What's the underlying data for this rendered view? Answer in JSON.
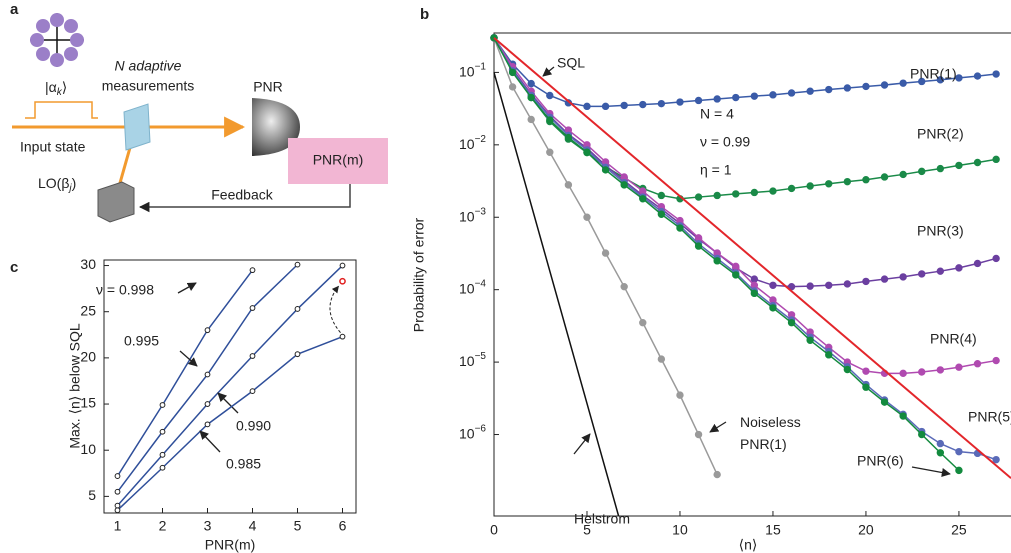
{
  "diagram": {
    "panel_label": "a",
    "state": "|αk⟩",
    "measurement_lines": [
      "N adaptive",
      "measurements"
    ],
    "detector": "PNR",
    "counter": "PNR(m)",
    "input": "Input state",
    "local_oscillator": "LO(βj)",
    "feedback": "Feedback"
  },
  "chart_data": [
    {
      "type": "line",
      "panel_label": "b",
      "ylabel": "Probability of error",
      "xlabel": "⟨n⟩",
      "ylog": true,
      "xlim": [
        0,
        27.8
      ],
      "xticks": [
        0,
        5,
        10,
        15,
        20,
        25
      ],
      "ylim": [
        7.5e-08,
        0.35
      ],
      "yticks": [
        {
          "value": 0.1,
          "label": "10−1"
        },
        {
          "value": 0.01,
          "label": "10−2"
        },
        {
          "value": 0.001,
          "label": "10−3"
        },
        {
          "value": 0.0001,
          "label": "10−4"
        },
        {
          "value": 1e-05,
          "label": "10−5"
        },
        {
          "value": 1e-06,
          "label": "10−6"
        }
      ],
      "annotations": [
        "N = 4",
        "ν = 0.99",
        "η = 1"
      ],
      "series": [
        {
          "name": "SQL",
          "color": "#e3262b",
          "markers": false,
          "x": [
            0,
            27.8
          ],
          "values": [
            0.3,
            2.5e-07
          ]
        },
        {
          "name": "Helstrom",
          "color": "#111111",
          "markers": false,
          "x": [
            0,
            6.7
          ],
          "values": [
            0.1,
            7.5e-08
          ]
        },
        {
          "name": "Noiseless PNR(1)",
          "color": "#9a9a9a",
          "markers": true,
          "x": [
            0,
            1,
            2,
            3,
            4,
            5,
            6,
            7,
            8,
            9,
            10,
            11,
            12
          ],
          "values": [
            0.3,
            0.063,
            0.0224,
            0.0079,
            0.0028,
            0.001,
            0.00032,
            0.00011,
            3.5e-05,
            1.1e-05,
            3.5e-06,
            1e-06,
            2.8e-07
          ]
        },
        {
          "name": "PNR(1)",
          "color": "#3a5ba8",
          "markers": true,
          "x": [
            0,
            1,
            2,
            3,
            4,
            5,
            6,
            7,
            8,
            9,
            10,
            11,
            12,
            13,
            14,
            15,
            16,
            17,
            18,
            19,
            20,
            21,
            22,
            23,
            24,
            25,
            26,
            27
          ],
          "values": [
            0.3,
            0.13,
            0.07,
            0.048,
            0.038,
            0.034,
            0.034,
            0.035,
            0.036,
            0.037,
            0.039,
            0.041,
            0.043,
            0.045,
            0.047,
            0.049,
            0.052,
            0.055,
            0.058,
            0.061,
            0.064,
            0.067,
            0.071,
            0.075,
            0.079,
            0.084,
            0.089,
            0.095
          ]
        },
        {
          "name": "PNR(2)",
          "color": "#1a8a48",
          "markers": true,
          "x": [
            0,
            1,
            2,
            3,
            4,
            5,
            6,
            7,
            8,
            9,
            10,
            11,
            12,
            13,
            14,
            15,
            16,
            17,
            18,
            19,
            20,
            21,
            22,
            23,
            24,
            25,
            26,
            27
          ],
          "values": [
            0.3,
            0.11,
            0.045,
            0.021,
            0.012,
            0.0078,
            0.005,
            0.0035,
            0.0025,
            0.002,
            0.0018,
            0.0019,
            0.002,
            0.0021,
            0.0022,
            0.0023,
            0.0025,
            0.0027,
            0.0029,
            0.0031,
            0.0033,
            0.0036,
            0.0039,
            0.0043,
            0.0047,
            0.0052,
            0.0057,
            0.0063
          ]
        },
        {
          "name": "PNR(3)",
          "color": "#6b3fa0",
          "markers": true,
          "x": [
            0,
            1,
            2,
            3,
            4,
            5,
            6,
            7,
            8,
            9,
            10,
            11,
            12,
            13,
            14,
            15,
            16,
            17,
            18,
            19,
            20,
            21,
            22,
            23,
            24,
            25,
            26,
            27
          ],
          "values": [
            0.3,
            0.11,
            0.05,
            0.025,
            0.014,
            0.009,
            0.0052,
            0.0032,
            0.002,
            0.0013,
            0.00082,
            0.0005,
            0.00032,
            0.0002,
            0.00014,
            0.000115,
            0.00011,
            0.000112,
            0.000115,
            0.00012,
            0.00013,
            0.00014,
            0.00015,
            0.000165,
            0.00018,
            0.0002,
            0.00023,
            0.00027
          ]
        },
        {
          "name": "PNR(4)",
          "color": "#b04ab0",
          "markers": true,
          "x": [
            0,
            1,
            2,
            3,
            4,
            5,
            6,
            7,
            8,
            9,
            10,
            11,
            12,
            13,
            14,
            15,
            16,
            17,
            18,
            19,
            20,
            21,
            22,
            23,
            24,
            25,
            26,
            27
          ],
          "values": [
            0.3,
            0.12,
            0.055,
            0.027,
            0.016,
            0.01,
            0.0058,
            0.0036,
            0.0023,
            0.0014,
            0.0009,
            0.00052,
            0.00032,
            0.00021,
            0.000115,
            7.2e-05,
            4.5e-05,
            2.6e-05,
            1.6e-05,
            1e-05,
            7.5e-06,
            7e-06,
            7e-06,
            7.3e-06,
            7.8e-06,
            8.5e-06,
            9.5e-06,
            1.05e-05
          ]
        },
        {
          "name": "PNR(5)",
          "color": "#5a6ab8",
          "markers": true,
          "x": [
            0,
            1,
            2,
            3,
            4,
            5,
            6,
            7,
            8,
            9,
            10,
            11,
            12,
            13,
            14,
            15,
            16,
            17,
            18,
            19,
            20,
            21,
            22,
            23,
            24,
            25,
            26,
            27
          ],
          "values": [
            0.3,
            0.105,
            0.048,
            0.024,
            0.0135,
            0.0085,
            0.0049,
            0.003,
            0.0019,
            0.0012,
            0.00076,
            0.00043,
            0.00027,
            0.00017,
            9.6e-05,
            6e-05,
            3.8e-05,
            2.2e-05,
            1.4e-05,
            8.6e-06,
            4.9e-06,
            3e-06,
            1.9e-06,
            1.1e-06,
            7.5e-07,
            5.8e-07,
            5.5e-07,
            4.5e-07
          ]
        },
        {
          "name": "PNR(6)",
          "color": "#138a3e",
          "markers": true,
          "x": [
            0,
            1,
            2,
            3,
            4,
            5,
            6,
            7,
            8,
            9,
            10,
            11,
            12,
            13,
            14,
            15,
            16,
            17,
            18,
            19,
            20,
            21,
            22,
            23,
            24,
            25
          ],
          "values": [
            0.3,
            0.1,
            0.045,
            0.022,
            0.0126,
            0.0079,
            0.0045,
            0.0028,
            0.0018,
            0.0011,
            0.00071,
            0.0004,
            0.00025,
            0.00016,
            8.9e-05,
            5.6e-05,
            3.5e-05,
            2e-05,
            1.26e-05,
            7.9e-06,
            4.5e-06,
            2.8e-06,
            1.8e-06,
            1e-06,
            5.6e-07,
            3.2e-07
          ]
        }
      ]
    },
    {
      "type": "line",
      "panel_label": "c",
      "ylabel": "Max. ⟨n⟩ below SQL",
      "xlabel": "PNR(m)",
      "ylog": false,
      "xlim": [
        0.7,
        6.3
      ],
      "xticks": [
        1,
        2,
        3,
        4,
        5,
        6
      ],
      "ylim": [
        3.2,
        30.6
      ],
      "yticks": [
        5,
        10,
        15,
        20,
        25,
        30
      ],
      "series": [
        {
          "name": "ν = 0.998",
          "color": "#2f4f9a",
          "markers": true,
          "x": [
            1,
            2,
            3,
            4
          ],
          "values": [
            7.2,
            14.9,
            23,
            29.5
          ]
        },
        {
          "name": "0.995",
          "color": "#2f4f9a",
          "markers": true,
          "x": [
            1,
            2,
            3,
            4,
            5
          ],
          "values": [
            5.5,
            12,
            18.2,
            25.4,
            30.1
          ]
        },
        {
          "name": "0.990",
          "color": "#2f4f9a",
          "markers": true,
          "x": [
            1,
            2,
            3,
            4,
            5,
            6
          ],
          "values": [
            4,
            9.5,
            15,
            20.2,
            25.3,
            30
          ]
        },
        {
          "name": "0.985",
          "color": "#2f4f9a",
          "markers": true,
          "x": [
            1,
            2,
            3,
            4,
            5,
            6
          ],
          "values": [
            3.5,
            8.1,
            12.8,
            16.4,
            20.4,
            22.3
          ]
        }
      ],
      "highlight": {
        "x": 6,
        "value": 28.3,
        "color": "#e02020"
      }
    }
  ]
}
